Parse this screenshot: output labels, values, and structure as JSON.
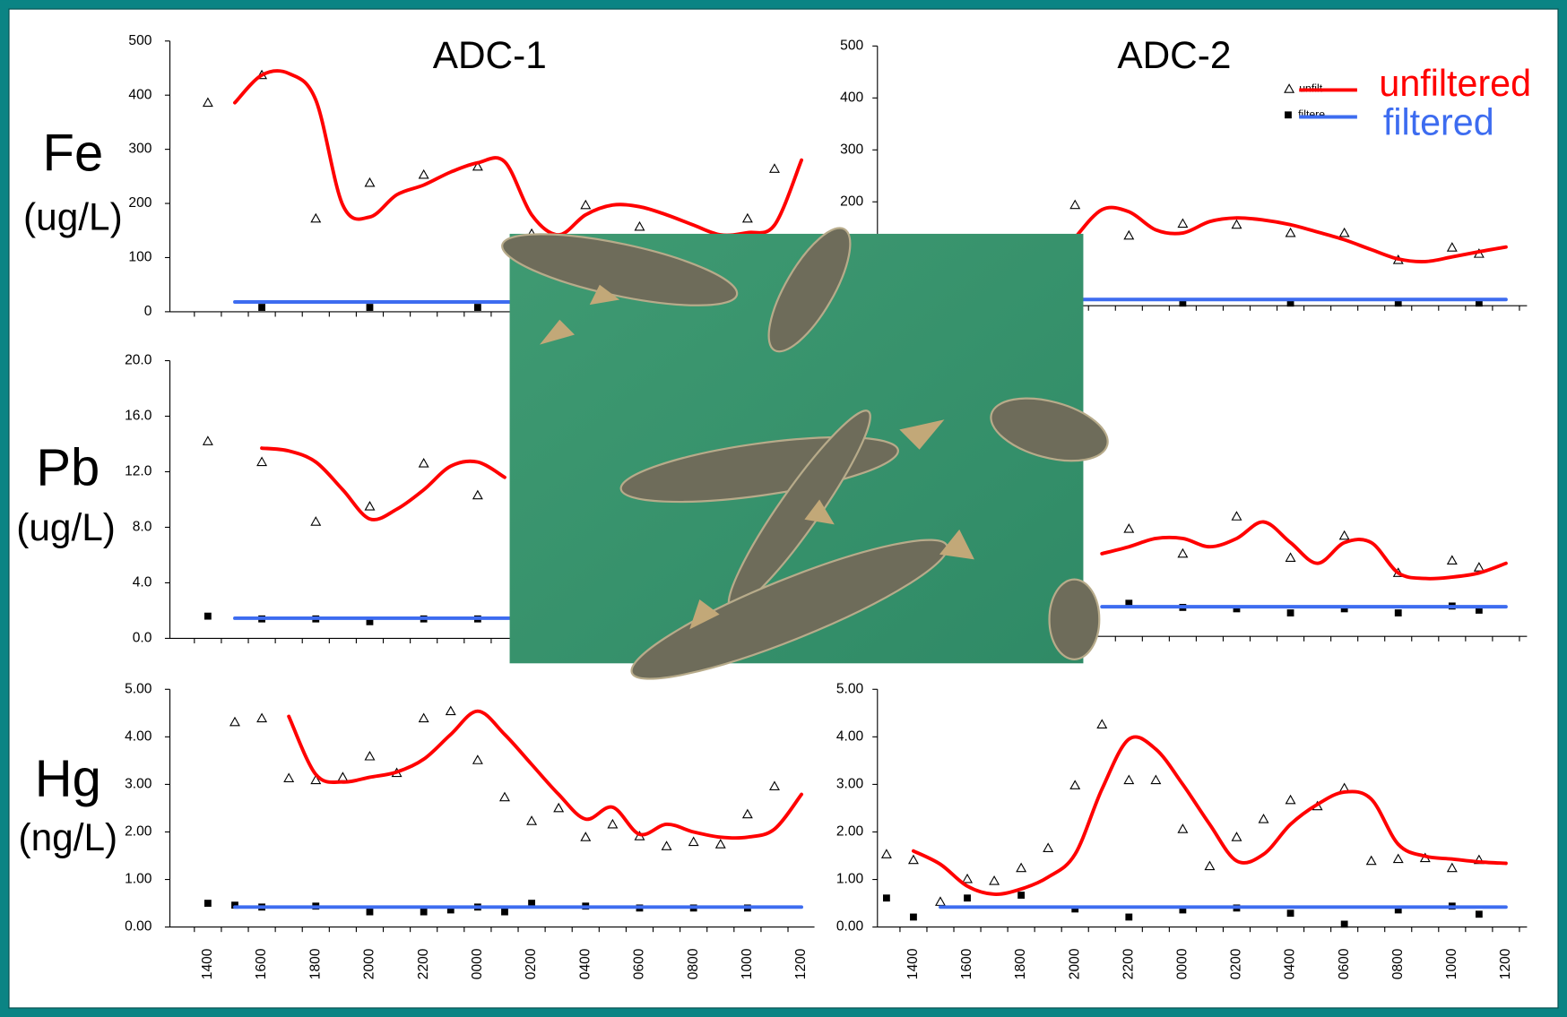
{
  "slide": {
    "row_labels": [
      {
        "element": "Fe",
        "unit": "(ug/L)"
      },
      {
        "element": "Pb",
        "unit": "(ug/L)"
      },
      {
        "element": "Hg",
        "unit": "(ng/L)"
      }
    ]
  },
  "chart_data": [
    {
      "type": "line",
      "title": "ADC-1",
      "ylim": [
        0,
        500
      ],
      "yticks": [
        0,
        100,
        200,
        300,
        400,
        500
      ],
      "series": [
        {
          "marker": "triangle",
          "color": "#000000",
          "values": [
            null,
            386,
            null,
            437,
            null,
            172,
            null,
            238,
            null,
            253,
            null,
            268,
            null,
            144,
            null,
            197,
            null,
            157,
            null,
            null,
            null,
            172,
            264,
            null
          ]
        },
        {
          "marker": "square",
          "color": "#000000",
          "values": [
            null,
            null,
            null,
            8,
            null,
            null,
            null,
            8,
            null,
            null,
            null,
            8,
            null,
            null,
            null,
            null,
            null,
            null,
            null,
            null,
            null,
            null,
            null,
            null
          ]
        },
        {
          "line": "smooth",
          "color": "#ff0000",
          "values": [
            null,
            null,
            386,
            437,
            440,
            391,
            197,
            175,
            216,
            234,
            258,
            275,
            277,
            179,
            142,
            179,
            197,
            194,
            179,
            160,
            142,
            146,
            160,
            280
          ]
        },
        {
          "line": "straight",
          "color": "#3d6cf0",
          "values": [
            null,
            null,
            18,
            18,
            18,
            18,
            18,
            18,
            18,
            18,
            18,
            18,
            18,
            18,
            18,
            18,
            18,
            18,
            18,
            18,
            18,
            18,
            18,
            18
          ]
        }
      ]
    },
    {
      "type": "line",
      "title": "ADC-2",
      "ylim": [
        0,
        500
      ],
      "yticks": [
        0,
        100,
        200,
        300,
        400,
        500
      ],
      "legend": "upper right",
      "series": [
        {
          "name": "unfilt",
          "marker": "triangle",
          "color": "#000000",
          "values": [
            null,
            null,
            null,
            null,
            null,
            null,
            null,
            194,
            null,
            135,
            null,
            158,
            null,
            156,
            null,
            140,
            null,
            140,
            null,
            88,
            null,
            112,
            100,
            null
          ]
        },
        {
          "name": "filtere",
          "marker": "square",
          "color": "#000000",
          "values": [
            null,
            null,
            null,
            null,
            null,
            null,
            null,
            null,
            null,
            null,
            null,
            5,
            null,
            null,
            null,
            5,
            null,
            null,
            null,
            5,
            null,
            null,
            5,
            null
          ]
        },
        {
          "name": "unfiltered",
          "line": "smooth",
          "color": "#ff0000",
          "values": [
            null,
            null,
            null,
            null,
            null,
            null,
            null,
            131,
            185,
            181,
            146,
            140,
            162,
            169,
            165,
            156,
            142,
            127,
            108,
            90,
            85,
            94,
            104,
            113
          ]
        },
        {
          "name": "filtered",
          "line": "straight",
          "color": "#3d6cf0",
          "values": [
            null,
            null,
            null,
            null,
            null,
            null,
            12,
            12,
            12,
            12,
            12,
            12,
            12,
            12,
            12,
            12,
            12,
            12,
            12,
            12,
            12,
            12,
            12,
            12
          ]
        }
      ]
    },
    {
      "type": "line",
      "ylim": [
        0,
        20
      ],
      "yticks": [
        {
          "value": 0,
          "label": "0.0"
        },
        {
          "value": 4,
          "label": "4.0"
        },
        {
          "value": 8,
          "label": "8.0"
        },
        {
          "value": 12,
          "label": "12.0"
        },
        {
          "value": 16,
          "label": "16.0"
        },
        {
          "value": 20,
          "label": "20.0"
        }
      ],
      "series": [
        {
          "marker": "triangle",
          "color": "#000000",
          "values": [
            null,
            14.2,
            null,
            12.7,
            null,
            8.4,
            null,
            9.5,
            null,
            12.6,
            null,
            10.3,
            null,
            null,
            null,
            null,
            null,
            null,
            null,
            null,
            null,
            null,
            null,
            null
          ]
        },
        {
          "marker": "square",
          "color": "#000000",
          "values": [
            null,
            1.6,
            null,
            1.4,
            null,
            1.4,
            null,
            1.2,
            null,
            1.4,
            null,
            1.4,
            null,
            null,
            null,
            null,
            null,
            null,
            null,
            null,
            null,
            null,
            null,
            null
          ]
        },
        {
          "line": "smooth",
          "color": "#ff0000",
          "values": [
            null,
            null,
            null,
            13.7,
            13.5,
            12.7,
            10.7,
            8.6,
            9.3,
            10.7,
            12.4,
            12.7,
            11.6,
            null,
            null,
            null,
            null,
            null,
            null,
            null,
            null,
            null,
            null,
            null
          ]
        },
        {
          "line": "straight",
          "color": "#3d6cf0",
          "values": [
            null,
            null,
            1.45,
            1.45,
            1.45,
            1.45,
            1.45,
            1.45,
            1.45,
            1.45,
            1.45,
            1.45,
            1.45,
            1.45,
            1.45,
            1.45,
            1.45,
            1.45,
            1.45,
            1.45,
            1.45,
            1.45,
            1.45,
            1.45
          ]
        }
      ]
    },
    {
      "type": "line",
      "ylim": [
        0,
        20
      ],
      "yticks": [
        {
          "value": 0,
          "label": "0.0"
        },
        {
          "value": 4,
          "label": "4.0"
        },
        {
          "value": 8,
          "label": "8.0"
        },
        {
          "value": 12,
          "label": "12.0"
        },
        {
          "value": 16,
          "label": "16.0"
        },
        {
          "value": 20,
          "label": "20.0"
        }
      ],
      "series": [
        {
          "marker": "triangle",
          "color": "#000000",
          "values": [
            null,
            null,
            null,
            null,
            null,
            null,
            null,
            null,
            null,
            7.8,
            null,
            6.0,
            null,
            8.7,
            null,
            5.7,
            null,
            7.3,
            null,
            4.6,
            null,
            5.5,
            5.0,
            null
          ]
        },
        {
          "marker": "square",
          "color": "#000000",
          "values": [
            null,
            null,
            null,
            null,
            null,
            null,
            null,
            null,
            null,
            2.4,
            null,
            2.1,
            null,
            2.0,
            null,
            1.7,
            null,
            2.0,
            null,
            1.7,
            null,
            2.2,
            1.9,
            null
          ]
        },
        {
          "line": "smooth",
          "color": "#ff0000",
          "values": [
            null,
            null,
            null,
            null,
            null,
            null,
            null,
            null,
            6.0,
            6.5,
            7.1,
            7.1,
            6.5,
            7.1,
            8.3,
            6.8,
            5.3,
            6.8,
            6.8,
            4.6,
            4.2,
            4.3,
            4.6,
            5.3
          ]
        },
        {
          "line": "straight",
          "color": "#3d6cf0",
          "values": [
            null,
            null,
            null,
            null,
            null,
            null,
            null,
            null,
            2.15,
            2.15,
            2.15,
            2.15,
            2.15,
            2.15,
            2.15,
            2.15,
            2.15,
            2.15,
            2.15,
            2.15,
            2.15,
            2.15,
            2.15,
            2.15
          ]
        }
      ]
    },
    {
      "type": "line",
      "ylim": [
        0,
        5
      ],
      "yticks": [
        {
          "value": 0,
          "label": "0.00"
        },
        {
          "value": 1,
          "label": "1.00"
        },
        {
          "value": 2,
          "label": "2.00"
        },
        {
          "value": 3,
          "label": "3.00"
        },
        {
          "value": 4,
          "label": "4.00"
        },
        {
          "value": 5,
          "label": "5.00"
        }
      ],
      "categories": [
        null,
        "1400",
        null,
        "1600",
        null,
        "1800",
        null,
        "2000",
        null,
        "2200",
        null,
        "0000",
        null,
        "0200",
        null,
        "0400",
        null,
        "0600",
        null,
        "0800",
        null,
        "1000",
        null,
        "1200"
      ],
      "series": [
        {
          "marker": "triangle",
          "color": "#000000",
          "values": [
            null,
            null,
            4.31,
            4.39,
            3.13,
            3.09,
            3.15,
            3.59,
            3.24,
            4.39,
            4.54,
            3.51,
            2.73,
            2.23,
            2.5,
            1.89,
            2.16,
            1.91,
            1.7,
            1.79,
            1.74,
            2.37,
            2.96,
            null
          ]
        },
        {
          "marker": "square",
          "color": "#000000",
          "values": [
            null,
            0.5,
            0.46,
            0.42,
            null,
            0.44,
            null,
            0.32,
            null,
            0.32,
            0.36,
            0.42,
            0.32,
            0.5,
            null,
            0.44,
            null,
            0.4,
            null,
            0.4,
            null,
            0.4,
            null,
            null
          ]
        },
        {
          "line": "smooth",
          "color": "#ff0000",
          "values": [
            null,
            null,
            null,
            null,
            4.43,
            3.21,
            3.05,
            3.15,
            3.26,
            3.53,
            4.05,
            4.54,
            4.05,
            3.42,
            2.79,
            2.27,
            2.52,
            1.95,
            2.16,
            2.0,
            1.89,
            1.89,
            2.06,
            2.79
          ]
        },
        {
          "line": "straight",
          "color": "#3d6cf0",
          "values": [
            null,
            null,
            0.42,
            0.42,
            0.42,
            0.42,
            0.42,
            0.42,
            0.42,
            0.42,
            0.42,
            0.42,
            0.42,
            0.42,
            0.42,
            0.42,
            0.42,
            0.42,
            0.42,
            0.42,
            0.42,
            0.42,
            0.42,
            0.42
          ]
        }
      ]
    },
    {
      "type": "line",
      "ylim": [
        0,
        5
      ],
      "yticks": [
        {
          "value": 0,
          "label": "0.00"
        },
        {
          "value": 1,
          "label": "1.00"
        },
        {
          "value": 2,
          "label": "2.00"
        },
        {
          "value": 3,
          "label": "3.00"
        },
        {
          "value": 4,
          "label": "4.00"
        },
        {
          "value": 5,
          "label": "5.00"
        }
      ],
      "categories": [
        null,
        "1400",
        null,
        "1600",
        null,
        "1800",
        null,
        "2000",
        null,
        "2200",
        null,
        "0000",
        null,
        "0200",
        null,
        "0400",
        null,
        "0600",
        null,
        "0800",
        null,
        "1000",
        null,
        "1200"
      ],
      "series": [
        {
          "marker": "triangle",
          "color": "#000000",
          "values": [
            1.53,
            1.41,
            0.53,
            1.01,
            0.97,
            1.24,
            1.66,
            2.98,
            4.26,
            3.09,
            3.09,
            2.06,
            1.28,
            1.89,
            2.27,
            2.67,
            2.54,
            2.92,
            1.39,
            1.43,
            1.45,
            1.24,
            1.41,
            null
          ]
        },
        {
          "marker": "square",
          "color": "#000000",
          "values": [
            0.61,
            0.21,
            null,
            0.61,
            null,
            0.67,
            null,
            0.38,
            null,
            0.21,
            null,
            0.36,
            null,
            0.4,
            null,
            0.29,
            null,
            0.06,
            null,
            0.36,
            null,
            0.44,
            0.27,
            null
          ]
        },
        {
          "line": "smooth",
          "color": "#ff0000",
          "values": [
            null,
            1.6,
            1.32,
            0.86,
            0.69,
            0.8,
            1.05,
            1.53,
            2.9,
            3.95,
            3.74,
            3.0,
            2.16,
            1.39,
            1.53,
            2.16,
            2.58,
            2.84,
            2.69,
            1.74,
            1.49,
            1.43,
            1.37,
            1.34
          ]
        },
        {
          "line": "straight",
          "color": "#3d6cf0",
          "values": [
            null,
            null,
            0.42,
            0.42,
            0.42,
            0.42,
            0.42,
            0.42,
            0.42,
            0.42,
            0.42,
            0.42,
            0.42,
            0.42,
            0.42,
            0.42,
            0.42,
            0.42,
            0.42,
            0.42,
            0.42,
            0.42,
            0.42,
            0.42
          ]
        }
      ]
    }
  ]
}
